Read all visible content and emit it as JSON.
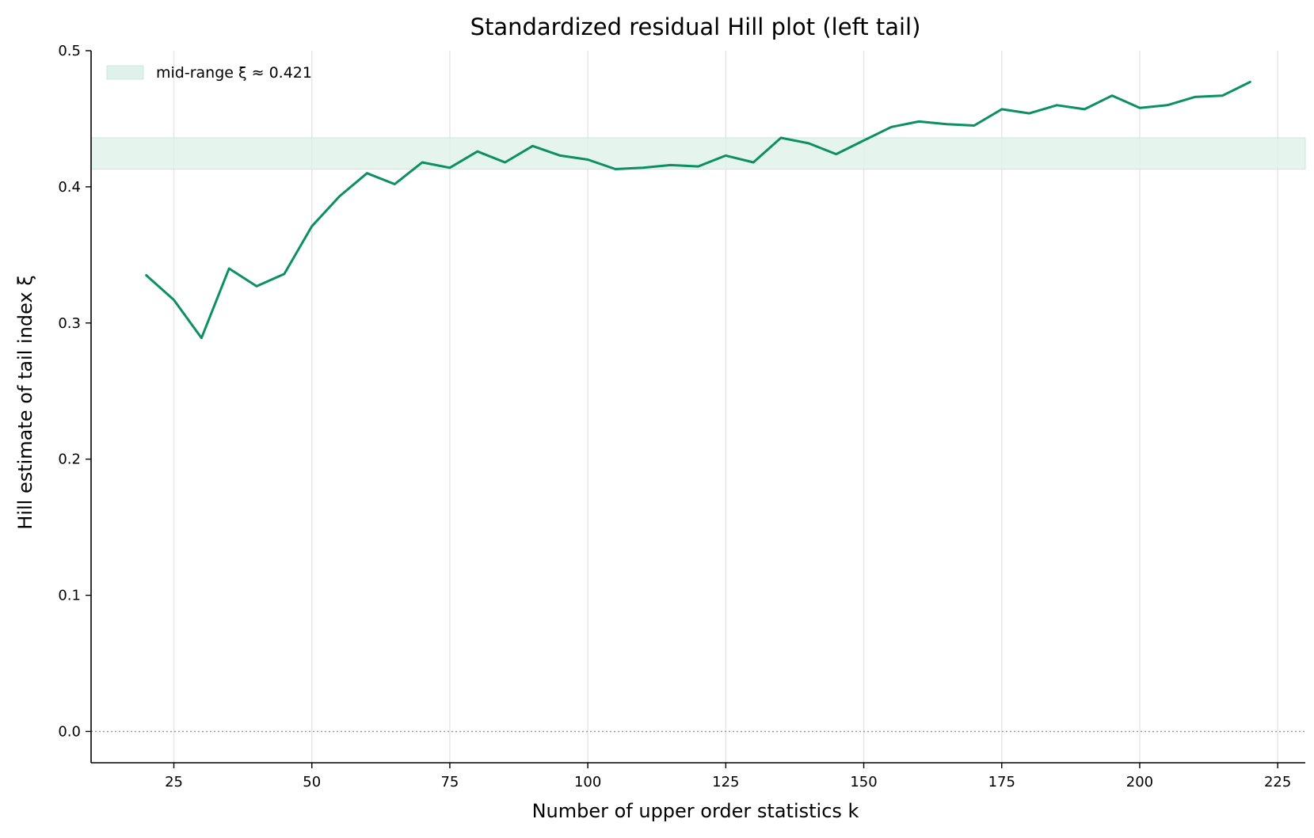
{
  "chart_data": {
    "type": "line",
    "title": "Standardized residual Hill plot (left tail)",
    "xlabel": "Number of upper order statistics k",
    "ylabel": "Hill estimate of tail index ξ",
    "xlim": [
      10,
      230
    ],
    "ylim": [
      -0.023,
      0.5
    ],
    "xticks": [
      25,
      50,
      75,
      100,
      125,
      150,
      175,
      200,
      225
    ],
    "yticks": [
      0.0,
      0.1,
      0.2,
      0.3,
      0.4,
      0.5
    ],
    "xtick_labels": [
      "25",
      "50",
      "75",
      "100",
      "125",
      "150",
      "175",
      "200",
      "225"
    ],
    "ytick_labels": [
      "0.0",
      "0.1",
      "0.2",
      "0.3",
      "0.4",
      "0.5"
    ],
    "grid": "vertical",
    "legend_placement": "top-left",
    "band": {
      "label": "mid-range ξ ≈ 0.421",
      "ymin": 0.413,
      "ymax": 0.436,
      "color": "#dff2ea"
    },
    "reference_line": {
      "y": 0.0,
      "style": "dotted",
      "color": "#999999"
    },
    "series": [
      {
        "color": "#0b8f63",
        "x": [
          20,
          25,
          30,
          35,
          40,
          45,
          50,
          55,
          60,
          65,
          70,
          75,
          80,
          85,
          90,
          95,
          100,
          105,
          110,
          115,
          120,
          125,
          130,
          135,
          140,
          145,
          150,
          155,
          160,
          165,
          170,
          175,
          180,
          185,
          190,
          195,
          200,
          205,
          210,
          215,
          220
        ],
        "y": [
          0.335,
          0.317,
          0.289,
          0.34,
          0.327,
          0.336,
          0.371,
          0.393,
          0.41,
          0.402,
          0.418,
          0.414,
          0.426,
          0.418,
          0.43,
          0.423,
          0.42,
          0.413,
          0.414,
          0.416,
          0.415,
          0.423,
          0.418,
          0.436,
          0.432,
          0.424,
          0.434,
          0.444,
          0.448,
          0.446,
          0.445,
          0.457,
          0.454,
          0.46,
          0.457,
          0.467,
          0.458,
          0.46,
          0.466,
          0.467,
          0.477
        ]
      }
    ]
  }
}
